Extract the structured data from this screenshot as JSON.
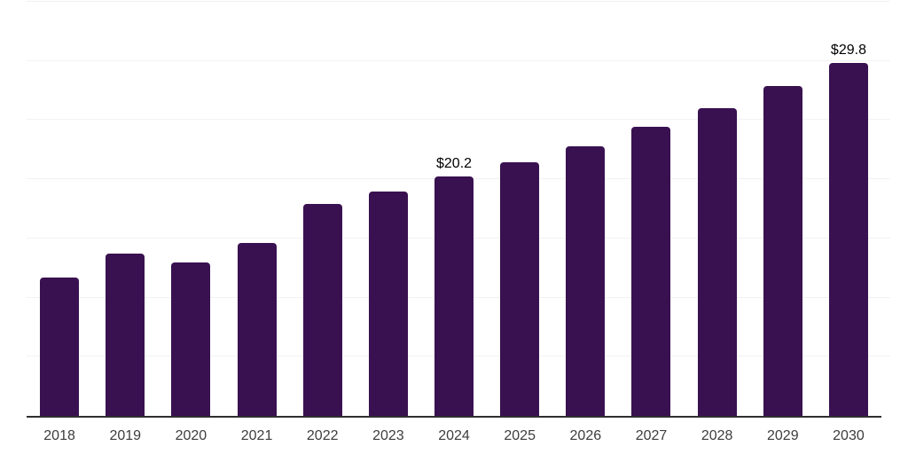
{
  "chart_data": {
    "type": "bar",
    "title": "",
    "xlabel": "",
    "ylabel": "",
    "categories": [
      "2018",
      "2019",
      "2020",
      "2021",
      "2022",
      "2023",
      "2024",
      "2025",
      "2026",
      "2027",
      "2028",
      "2029",
      "2030"
    ],
    "values": [
      11.7,
      13.7,
      13.0,
      14.6,
      17.9,
      19.0,
      20.2,
      21.4,
      22.8,
      24.4,
      26.0,
      27.9,
      29.8
    ],
    "data_labels": {
      "2024": "$20.2",
      "2030": "$29.8"
    },
    "ylim": [
      0,
      35
    ],
    "gridline_values": [
      5,
      10,
      15,
      20,
      25,
      30,
      35
    ],
    "grid": "horizontal-only",
    "legend": "none",
    "y_axis_tick_labels_visible": false,
    "colors": {
      "bar": "#391150",
      "gridline": "#f2f2f2",
      "axis_line": "#2f2f2f",
      "tick_label": "#3d3d3d",
      "data_label": "#000000",
      "background": "#ffffff"
    }
  }
}
